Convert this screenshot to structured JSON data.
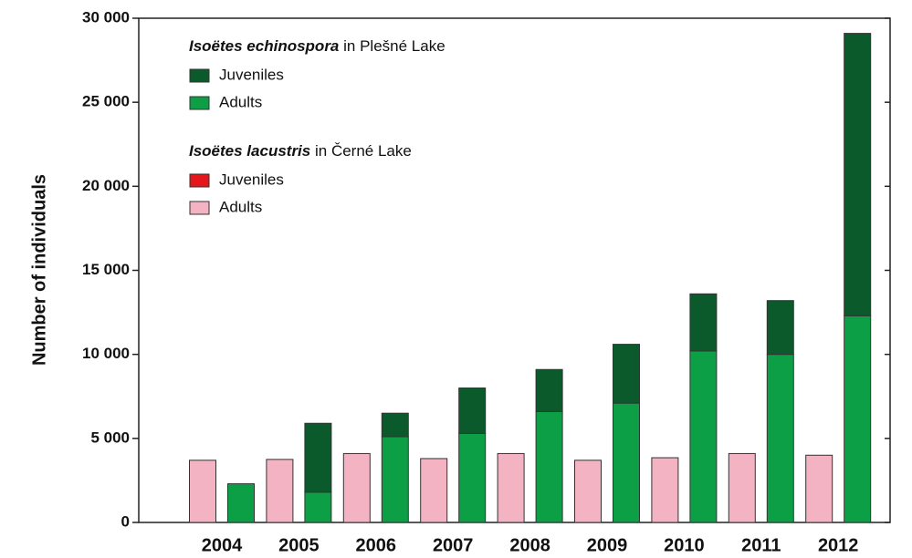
{
  "chart_data": {
    "type": "grouped_stacked_bar",
    "y_label": "Number of individuals",
    "categories": [
      "2004",
      "2005",
      "2006",
      "2007",
      "2008",
      "2009",
      "2010",
      "2011",
      "2012"
    ],
    "legend_groups": [
      {
        "species": "Isoëtes echinospora",
        "place": "in Plešné Lake"
      },
      {
        "species": "Isoëtes lacustris",
        "place": "in Černé Lake"
      }
    ],
    "series": [
      {
        "name": "Juveniles",
        "color": "#0b5a2b",
        "group": 0,
        "stack": 1,
        "values": [
          0,
          4100,
          1400,
          2700,
          2500,
          3500,
          3400,
          3200,
          16800
        ]
      },
      {
        "name": "Adults",
        "color": "#0d9f45",
        "group": 0,
        "stack": 1,
        "values": [
          2300,
          1800,
          5100,
          5300,
          6600,
          7100,
          10200,
          10000,
          12300
        ]
      },
      {
        "name": "Juveniles",
        "color": "#e3171c",
        "group": 1,
        "stack": 0,
        "values": [
          0,
          0,
          0,
          0,
          0,
          0,
          0,
          0,
          0
        ]
      },
      {
        "name": "Adults",
        "color": "#f4b3c3",
        "group": 1,
        "stack": 0,
        "values": [
          3700,
          3750,
          4100,
          3800,
          4100,
          3700,
          3850,
          4100,
          4000
        ]
      }
    ],
    "ylim": [
      0,
      30000
    ],
    "yticks": [
      0,
      {
        "value": 5000,
        "label": "5 000"
      },
      {
        "value": 10000,
        "label": "10 000"
      },
      {
        "value": 15000,
        "label": "15 000"
      },
      {
        "value": 20000,
        "label": "20 000"
      },
      {
        "value": 25000,
        "label": "25 000"
      },
      {
        "value": 30000,
        "label": "30 000"
      }
    ]
  }
}
